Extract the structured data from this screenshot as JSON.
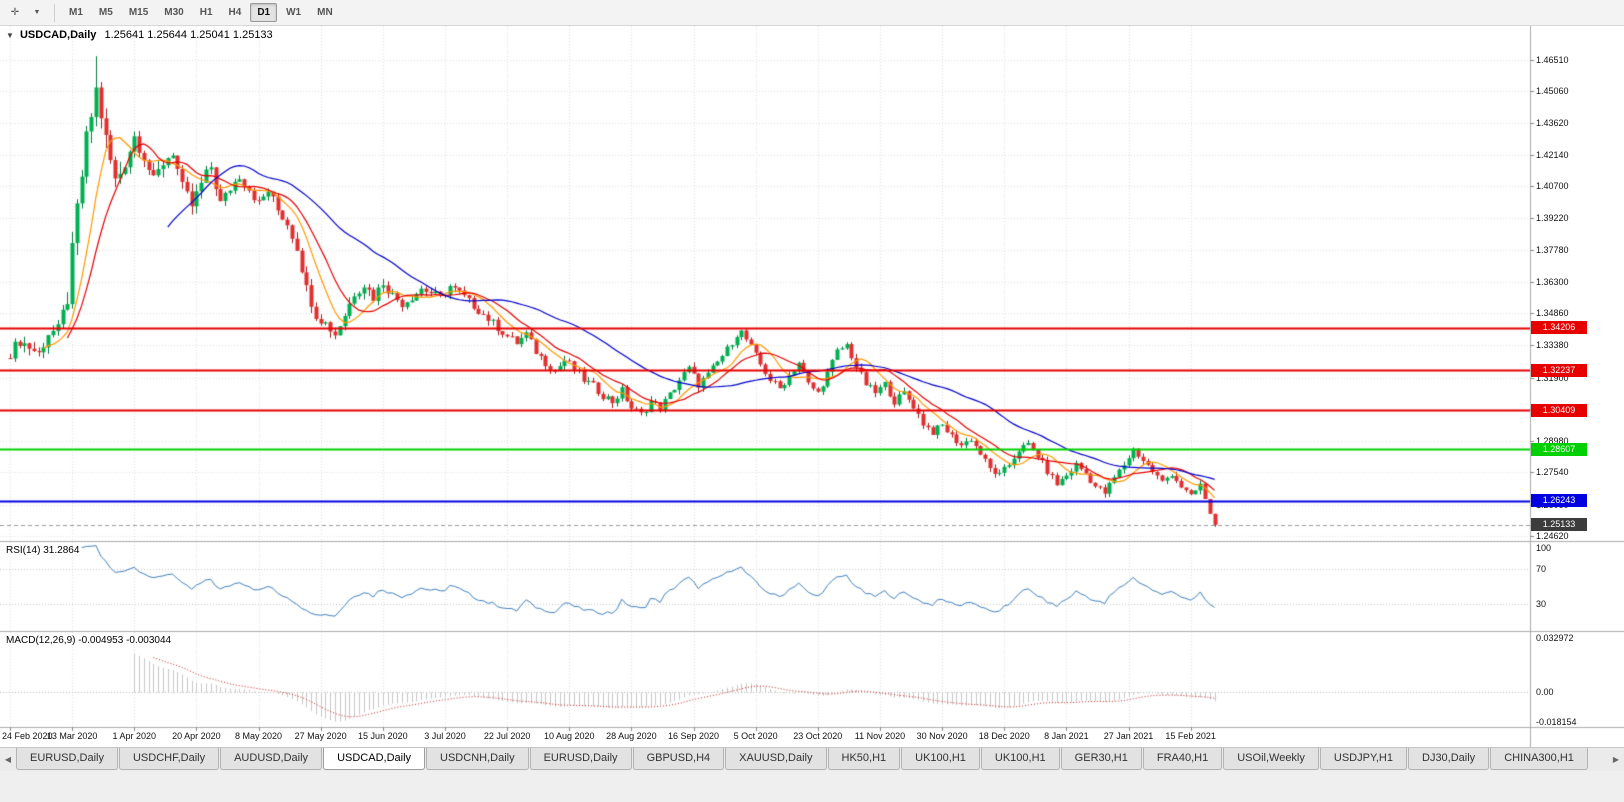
{
  "toolbar": {
    "timeframes": [
      "M1",
      "M5",
      "M15",
      "M30",
      "H1",
      "H4",
      "D1",
      "W1",
      "MN"
    ],
    "active_timeframe": "D1"
  },
  "icons": {
    "title_collapse": "▼",
    "dropdown_arrow": "▼",
    "chart_cursor": "✛",
    "tab_scroll_left": "◀",
    "tab_scroll_right": "▶"
  },
  "chart": {
    "symbol": "USDCAD,Daily",
    "ohlc": "1.25641 1.25644 1.25041 1.25133"
  },
  "price_axis": [
    "1.46510",
    "1.45060",
    "1.43620",
    "1.42140",
    "1.40700",
    "1.39220",
    "1.37780",
    "1.36300",
    "1.34860",
    "1.33380",
    "1.31900",
    "1.30460",
    "1.28980",
    "1.27540",
    "1.26060",
    "1.24620"
  ],
  "hlines": [
    {
      "value": 1.34206,
      "label": "1.34206",
      "color": "#E60000",
      "text_color": "#ffffff"
    },
    {
      "value": 1.32237,
      "label": "1.32237",
      "color": "#E60000",
      "text_color": "#ffffff"
    },
    {
      "value": 1.30409,
      "label": "1.30409",
      "color": "#E60000",
      "text_color": "#ffffff"
    },
    {
      "value": 1.28607,
      "label": "1.28607",
      "color": "#00D000",
      "text_color": "#ffffff"
    },
    {
      "value": 1.26243,
      "label": "1.26243",
      "color": "#0000E0",
      "text_color": "#ffffff"
    }
  ],
  "current_price": {
    "value": 1.25133,
    "label": "1.25133",
    "color": "#3C3C3C",
    "text_color": "#ffffff"
  },
  "dates": [
    "24 Feb 2020",
    "13 Mar 2020",
    "1 Apr 2020",
    "20 Apr 2020",
    "8 May 2020",
    "27 May 2020",
    "15 Jun 2020",
    "3 Jul 2020",
    "22 Jul 2020",
    "10 Aug 2020",
    "28 Aug 2020",
    "16 Sep 2020",
    "5 Oct 2020",
    "23 Oct 2020",
    "11 Nov 2020",
    "30 Nov 2020",
    "18 Dec 2020",
    "8 Jan 2021",
    "27 Jan 2021",
    "15 Feb 2021"
  ],
  "rsi": {
    "label": "RSI(14) 31.2864",
    "period": 14,
    "value": 31.2864,
    "levels": [
      "100",
      "70",
      "30"
    ],
    "level_values": [
      100,
      70,
      30
    ],
    "line_color": "#4080C0"
  },
  "macd": {
    "label": "MACD(12,26,9) -0.004953 -0.003044",
    "fast": 12,
    "slow": 26,
    "signal": 9,
    "values": [
      -0.004953,
      -0.003044
    ],
    "levels": [
      "0.032972",
      "0.00",
      "-0.018154"
    ],
    "level_values": [
      0.032972,
      0.0,
      -0.018154
    ],
    "hist_color": "#C6C6C6",
    "signal_color": "#CC2222"
  },
  "tabs": [
    "EURUSD,Daily",
    "USDCHF,Daily",
    "AUDUSD,Daily",
    "USDCAD,Daily",
    "USDCNH,Daily",
    "EURUSD,Daily",
    "GBPUSD,H4",
    "XAUUSD,Daily",
    "HK50,H1",
    "UK100,H1",
    "UK100,H1",
    "GER30,H1",
    "FRA40,H1",
    "USOil,Weekly",
    "USDJPY,H1",
    "DJ30,Daily",
    "CHINA300,H1"
  ],
  "active_tab": 3,
  "chart_data": {
    "type": "candlestick",
    "symbol": "USDCAD",
    "timeframe": "Daily",
    "x_range": [
      "24 Feb 2020",
      "19 Feb 2021"
    ],
    "price_range": [
      1.2439,
      1.4807
    ],
    "num_candles": 253,
    "candles_per_date_label": 13,
    "peak": {
      "index": 18,
      "high": 1.4668
    },
    "last_candle": {
      "open": 1.25641,
      "high": 1.25644,
      "low": 1.25041,
      "close": 1.25133
    },
    "up_color": "#00B050",
    "up_border": "#007A3C",
    "down_color": "#E03030",
    "down_border": "#A81E1E",
    "moving_averages": [
      {
        "name": "fast-ma",
        "period": 8,
        "color": "#FF9900"
      },
      {
        "name": "mid-ma",
        "period": 13,
        "color": "#E60000"
      },
      {
        "name": "slow-ma",
        "period": 34,
        "color": "#0000CC"
      }
    ],
    "close_anchors": [
      [
        0,
        1.3305
      ],
      [
        2,
        1.336
      ],
      [
        4,
        1.333
      ],
      [
        6,
        1.33
      ],
      [
        8,
        1.3395
      ],
      [
        10,
        1.341
      ],
      [
        12,
        1.356
      ],
      [
        14,
        1.396
      ],
      [
        16,
        1.428
      ],
      [
        18,
        1.451
      ],
      [
        19,
        1.44
      ],
      [
        20,
        1.428
      ],
      [
        22,
        1.409
      ],
      [
        24,
        1.418
      ],
      [
        26,
        1.43
      ],
      [
        28,
        1.421
      ],
      [
        30,
        1.409
      ],
      [
        32,
        1.418
      ],
      [
        34,
        1.423
      ],
      [
        36,
        1.406
      ],
      [
        38,
        1.398
      ],
      [
        40,
        1.408
      ],
      [
        42,
        1.416
      ],
      [
        44,
        1.399
      ],
      [
        46,
        1.406
      ],
      [
        48,
        1.412
      ],
      [
        50,
        1.406
      ],
      [
        52,
        1.399
      ],
      [
        54,
        1.405
      ],
      [
        56,
        1.396
      ],
      [
        58,
        1.39
      ],
      [
        60,
        1.379
      ],
      [
        62,
        1.36
      ],
      [
        64,
        1.348
      ],
      [
        66,
        1.344
      ],
      [
        68,
        1.339
      ],
      [
        70,
        1.348
      ],
      [
        72,
        1.358
      ],
      [
        74,
        1.362
      ],
      [
        76,
        1.356
      ],
      [
        78,
        1.363
      ],
      [
        80,
        1.357
      ],
      [
        82,
        1.353
      ],
      [
        84,
        1.356
      ],
      [
        86,
        1.36
      ],
      [
        88,
        1.358
      ],
      [
        90,
        1.356
      ],
      [
        92,
        1.361
      ],
      [
        94,
        1.358
      ],
      [
        96,
        1.354
      ],
      [
        98,
        1.35
      ],
      [
        100,
        1.346
      ],
      [
        102,
        1.342
      ],
      [
        104,
        1.338
      ],
      [
        106,
        1.335
      ],
      [
        108,
        1.339
      ],
      [
        110,
        1.331
      ],
      [
        112,
        1.326
      ],
      [
        114,
        1.322
      ],
      [
        116,
        1.327
      ],
      [
        118,
        1.323
      ],
      [
        120,
        1.318
      ],
      [
        122,
        1.315
      ],
      [
        124,
        1.311
      ],
      [
        126,
        1.308
      ],
      [
        128,
        1.313
      ],
      [
        130,
        1.305
      ],
      [
        132,
        1.302
      ],
      [
        134,
        1.308
      ],
      [
        136,
        1.305
      ],
      [
        138,
        1.311
      ],
      [
        140,
        1.318
      ],
      [
        142,
        1.323
      ],
      [
        144,
        1.316
      ],
      [
        146,
        1.32
      ],
      [
        148,
        1.326
      ],
      [
        150,
        1.332
      ],
      [
        152,
        1.339
      ],
      [
        153,
        1.34
      ],
      [
        155,
        1.333
      ],
      [
        157,
        1.325
      ],
      [
        159,
        1.318
      ],
      [
        161,
        1.314
      ],
      [
        163,
        1.32
      ],
      [
        165,
        1.326
      ],
      [
        167,
        1.316
      ],
      [
        169,
        1.312
      ],
      [
        171,
        1.321
      ],
      [
        173,
        1.331
      ],
      [
        175,
        1.334
      ],
      [
        177,
        1.324
      ],
      [
        179,
        1.316
      ],
      [
        181,
        1.312
      ],
      [
        183,
        1.316
      ],
      [
        185,
        1.308
      ],
      [
        187,
        1.312
      ],
      [
        189,
        1.306
      ],
      [
        191,
        1.298
      ],
      [
        193,
        1.294
      ],
      [
        195,
        1.297
      ],
      [
        197,
        1.292
      ],
      [
        199,
        1.288
      ],
      [
        201,
        1.291
      ],
      [
        203,
        1.284
      ],
      [
        205,
        1.277
      ],
      [
        207,
        1.274
      ],
      [
        209,
        1.279
      ],
      [
        211,
        1.286
      ],
      [
        213,
        1.288
      ],
      [
        215,
        1.283
      ],
      [
        217,
        1.276
      ],
      [
        219,
        1.27
      ],
      [
        221,
        1.274
      ],
      [
        223,
        1.279
      ],
      [
        225,
        1.275
      ],
      [
        227,
        1.269
      ],
      [
        229,
        1.266
      ],
      [
        231,
        1.273
      ],
      [
        233,
        1.279
      ],
      [
        235,
        1.286
      ],
      [
        237,
        1.281
      ],
      [
        239,
        1.276
      ],
      [
        241,
        1.271
      ],
      [
        243,
        1.275
      ],
      [
        245,
        1.269
      ],
      [
        247,
        1.264
      ],
      [
        249,
        1.27
      ],
      [
        251,
        1.2564
      ],
      [
        252,
        1.25133
      ]
    ]
  }
}
